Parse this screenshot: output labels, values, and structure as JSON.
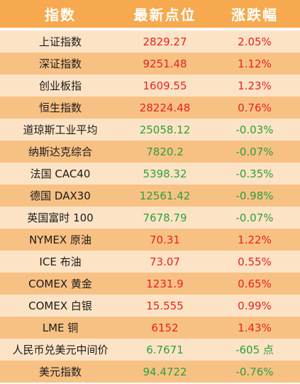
{
  "header": {
    "col_name": "指数",
    "col_price": "最新点位",
    "col_change": "涨跌幅"
  },
  "colors": {
    "header_bg": "#f6a94e",
    "row_light": "#fde3c6",
    "row_dark": "#f8c184",
    "up": "#e8211e",
    "down": "#2a9f3e"
  },
  "rows": [
    {
      "name": "上证指数",
      "price": "2829.27",
      "change": "2.05%",
      "dir": "up"
    },
    {
      "name": "深证指数",
      "price": "9251.48",
      "change": "1.12%",
      "dir": "up"
    },
    {
      "name": "创业板指",
      "price": "1609.55",
      "change": "1.23%",
      "dir": "up"
    },
    {
      "name": "恒生指数",
      "price": "28224.48",
      "change": "0.76%",
      "dir": "up"
    },
    {
      "name": "道琼斯工业平均",
      "price": "25058.12",
      "change": "-0.03%",
      "dir": "down"
    },
    {
      "name": "纳斯达克综合",
      "price": "7820.2",
      "change": "-0.07%",
      "dir": "down"
    },
    {
      "name": "法国 CAC40",
      "price": "5398.32",
      "change": "-0.35%",
      "dir": "down"
    },
    {
      "name": "德国 DAX30",
      "price": "12561.42",
      "change": "-0.98%",
      "dir": "down"
    },
    {
      "name": "英国富时 100",
      "price": "7678.79",
      "change": "-0.07%",
      "dir": "down"
    },
    {
      "name": "NYMEX 原油",
      "price": "70.31",
      "change": "1.22%",
      "dir": "up"
    },
    {
      "name": "ICE 布油",
      "price": "73.07",
      "change": "0.55%",
      "dir": "up"
    },
    {
      "name": "COMEX 黄金",
      "price": "1231.9",
      "change": "0.65%",
      "dir": "up"
    },
    {
      "name": "COMEX 白银",
      "price": "15.555",
      "change": "0.99%",
      "dir": "up"
    },
    {
      "name": "LME 铜",
      "price": "6152",
      "change": "1.43%",
      "dir": "up"
    },
    {
      "name": "人民币兑美元中间价",
      "price": "6.7671",
      "change": "-605 点",
      "dir": "down"
    },
    {
      "name": "美元指数",
      "price": "94.4722",
      "change": "-0.76%",
      "dir": "down"
    }
  ]
}
